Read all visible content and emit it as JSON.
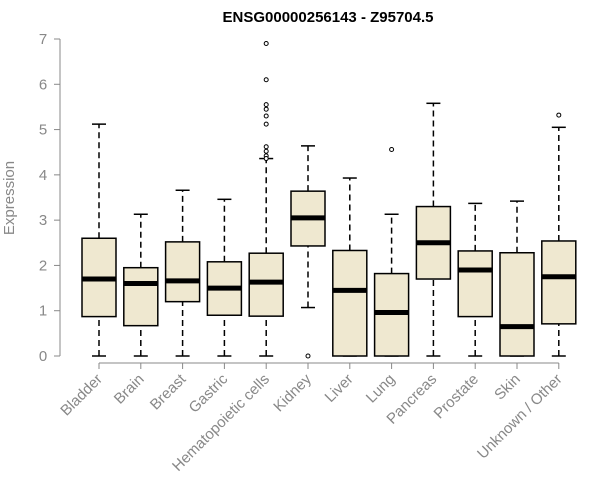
{
  "chart_data": {
    "type": "box",
    "title": "ENSG00000256143 - Z95704.5",
    "xlabel": "",
    "ylabel": "Expression",
    "ylim": [
      0,
      7
    ],
    "yticks": [
      0,
      1,
      2,
      3,
      4,
      5,
      6,
      7
    ],
    "grid": false,
    "categories": [
      "Bladder",
      "Brain",
      "Breast",
      "Gastric",
      "Hematopoietic cells",
      "Kidney",
      "Liver",
      "Lung",
      "Pancreas",
      "Prostate",
      "Skin",
      "Unknown / Other"
    ],
    "boxes": [
      {
        "min": 0.0,
        "q1": 0.87,
        "median": 1.7,
        "q3": 2.6,
        "max": 5.12,
        "outliers": []
      },
      {
        "min": 0.0,
        "q1": 0.67,
        "median": 1.6,
        "q3": 1.95,
        "max": 3.13,
        "outliers": []
      },
      {
        "min": 0.0,
        "q1": 1.2,
        "median": 1.66,
        "q3": 2.52,
        "max": 3.66,
        "outliers": []
      },
      {
        "min": 0.0,
        "q1": 0.9,
        "median": 1.5,
        "q3": 2.08,
        "max": 3.46,
        "outliers": []
      },
      {
        "min": 0.0,
        "q1": 0.88,
        "median": 1.63,
        "q3": 2.27,
        "max": 4.36,
        "outliers": [
          6.9,
          6.1,
          5.55,
          5.45,
          5.3,
          5.12,
          4.62,
          4.52,
          4.42,
          4.36
        ]
      },
      {
        "min": 1.07,
        "q1": 2.43,
        "median": 3.05,
        "q3": 3.64,
        "max": 4.64,
        "outliers": [
          0.0
        ]
      },
      {
        "min": 0.0,
        "q1": 0.0,
        "median": 1.45,
        "q3": 2.33,
        "max": 3.93,
        "outliers": []
      },
      {
        "min": 0.0,
        "q1": 0.0,
        "median": 0.96,
        "q3": 1.82,
        "max": 3.13,
        "outliers": [
          4.56
        ]
      },
      {
        "min": 0.0,
        "q1": 1.7,
        "median": 2.5,
        "q3": 3.3,
        "max": 5.58,
        "outliers": []
      },
      {
        "min": 0.0,
        "q1": 0.87,
        "median": 1.9,
        "q3": 2.32,
        "max": 3.37,
        "outliers": []
      },
      {
        "min": 0.0,
        "q1": 0.0,
        "median": 0.65,
        "q3": 2.28,
        "max": 3.42,
        "outliers": []
      },
      {
        "min": 0.0,
        "q1": 0.71,
        "median": 1.75,
        "q3": 2.54,
        "max": 5.05,
        "outliers": [
          5.32
        ]
      }
    ],
    "colors": {
      "box_fill": "#efe8d0",
      "box_stroke": "#000000",
      "axis": "#888888",
      "tick_label": "#888888",
      "title": "#000000"
    }
  }
}
